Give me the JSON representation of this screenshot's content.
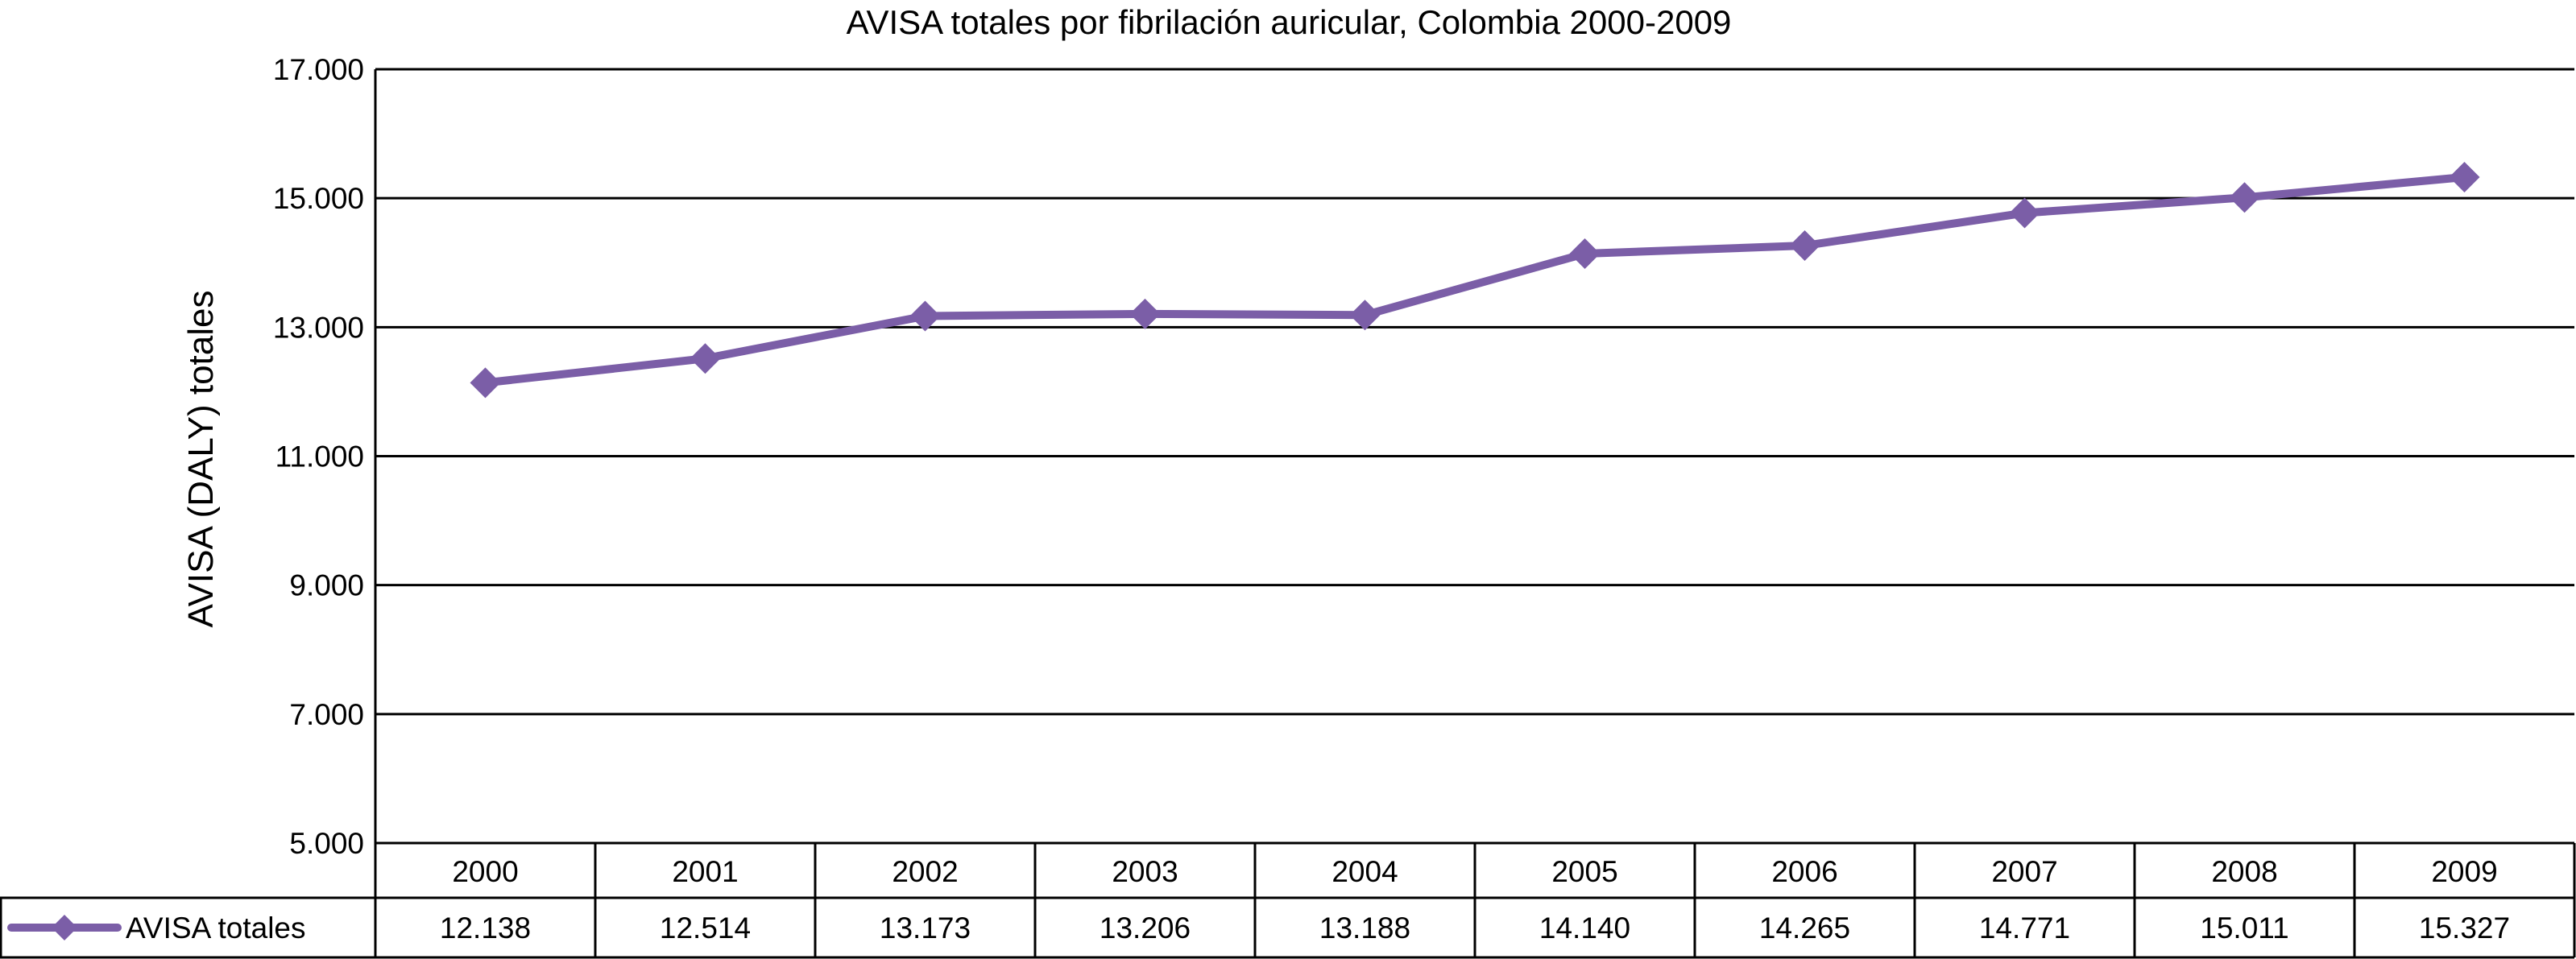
{
  "chart_data": {
    "type": "line",
    "title": "AVISA totales por fibrilación auricular, Colombia 2000-2009",
    "xlabel": "",
    "ylabel": "AVISA (DALY) totales",
    "ylim": [
      5000,
      17000
    ],
    "yticks": [
      5000,
      7000,
      9000,
      11000,
      13000,
      15000,
      17000
    ],
    "ytick_labels": [
      "5.000",
      "7.000",
      "9.000",
      "11.000",
      "13.000",
      "15.000",
      "17.000"
    ],
    "grid": true,
    "legend": "data-table-left",
    "categories": [
      "2000",
      "2001",
      "2002",
      "2003",
      "2004",
      "2005",
      "2006",
      "2007",
      "2008",
      "2009"
    ],
    "series": [
      {
        "name": "AVISA totales",
        "color": "#7b5ea7",
        "marker": "diamond",
        "values": [
          12138,
          12514,
          13173,
          13206,
          13188,
          14140,
          14265,
          14771,
          15011,
          15327
        ],
        "value_labels": [
          "12.138",
          "12.514",
          "13.173",
          "13.206",
          "13.188",
          "14.140",
          "14.265",
          "14.771",
          "15.011",
          "15.327"
        ]
      }
    ]
  }
}
